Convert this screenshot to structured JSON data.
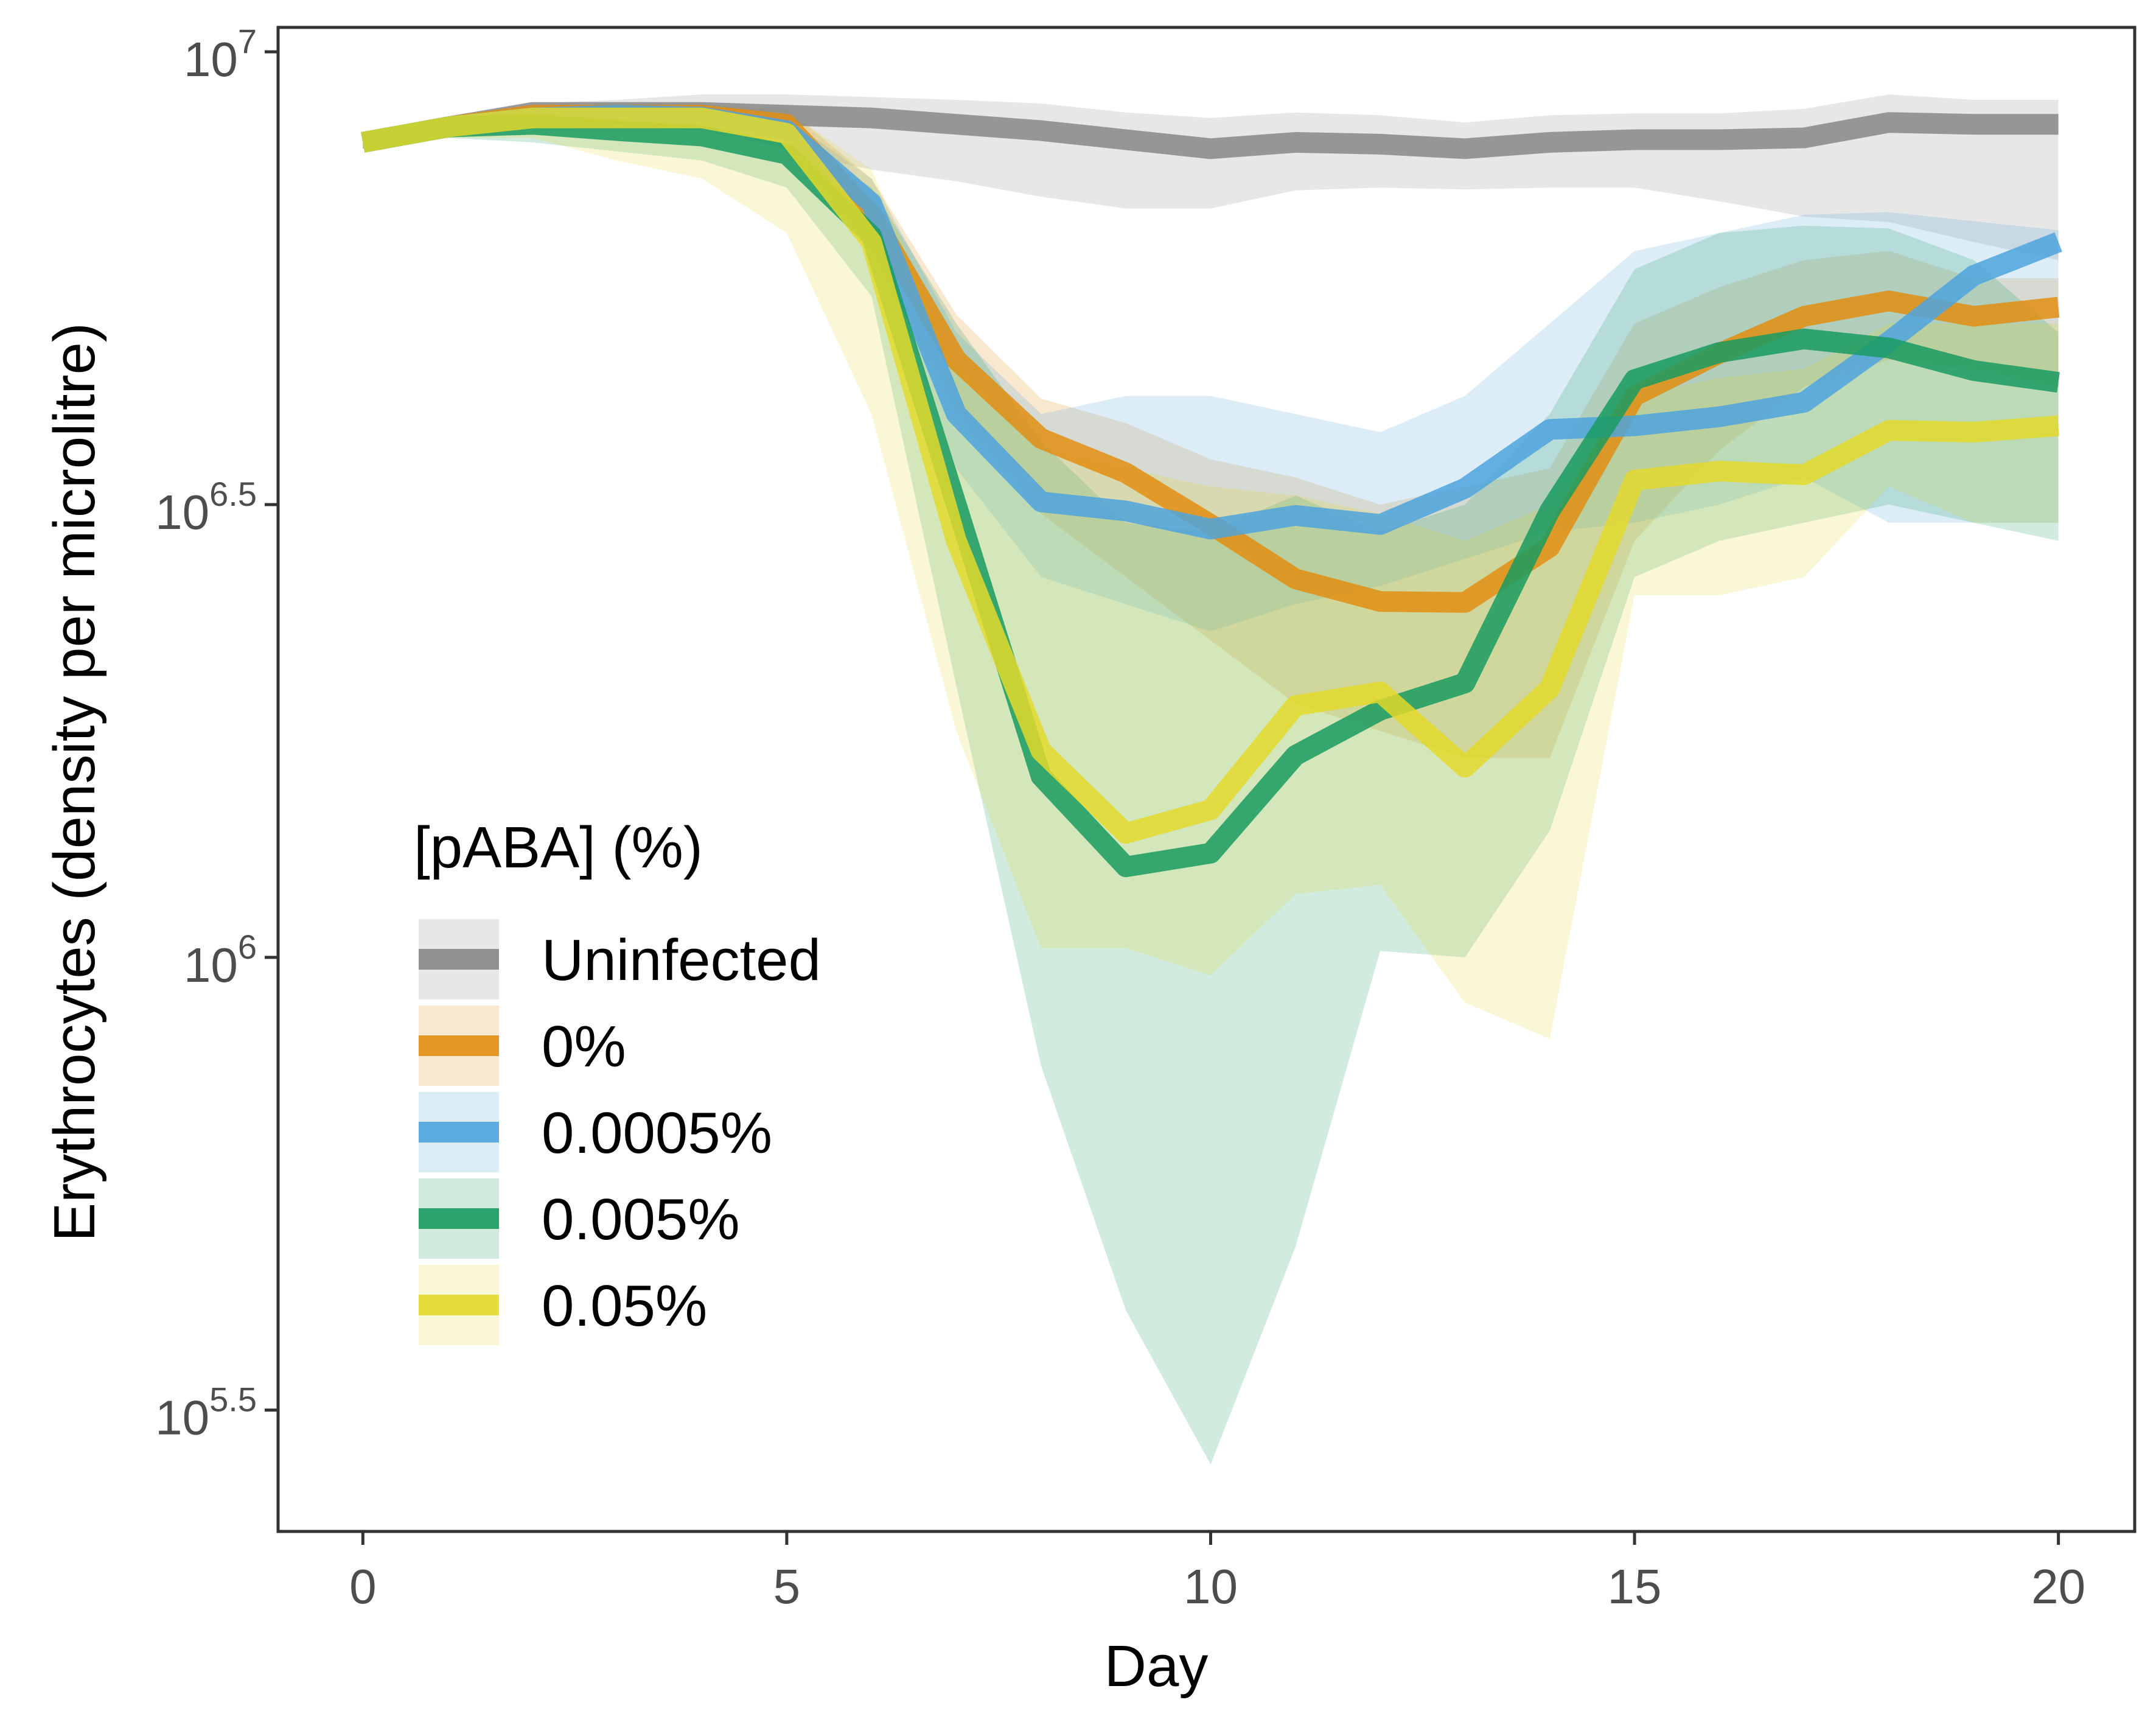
{
  "chart_data": {
    "type": "line",
    "xlabel": "Day",
    "ylabel": "Erythrocytes (density per microlitre)",
    "y_scale": "log10",
    "xlim": [
      -1,
      20.9
    ],
    "ylim_log10": [
      5.366,
      7.027
    ],
    "x_ticks": [
      0,
      5,
      10,
      15,
      20
    ],
    "y_ticks": [
      {
        "value": 5.5,
        "base": "10",
        "exp": "5.5"
      },
      {
        "value": 6.0,
        "base": "10",
        "exp": "6"
      },
      {
        "value": 6.5,
        "base": "10",
        "exp": "6.5"
      },
      {
        "value": 7.0,
        "base": "10",
        "exp": "7"
      }
    ],
    "legend_title": "[pABA] (%)",
    "legend_position": "center-left",
    "grid": false,
    "x": [
      0,
      1,
      2,
      3,
      4,
      5,
      6,
      7,
      8,
      9,
      10,
      11,
      12,
      13,
      14,
      15,
      16,
      17,
      18,
      19,
      20
    ],
    "series": [
      {
        "name": "Uninfected",
        "color": "#878787",
        "band_color": "#d9d9d9",
        "mean": [
          6.9,
          6.917,
          6.933,
          6.933,
          6.933,
          6.93,
          6.927,
          6.92,
          6.913,
          6.903,
          6.893,
          6.9,
          6.898,
          6.893,
          6.9,
          6.903,
          6.903,
          6.905,
          6.922,
          6.92,
          6.92
        ],
        "lower": [
          6.893,
          6.905,
          6.925,
          6.92,
          6.925,
          6.89,
          6.87,
          6.857,
          6.84,
          6.827,
          6.827,
          6.847,
          6.85,
          6.848,
          6.85,
          6.85,
          6.835,
          6.818,
          6.812,
          6.79,
          6.77
        ],
        "upper": [
          6.907,
          6.922,
          6.943,
          6.947,
          6.953,
          6.953,
          6.95,
          6.947,
          6.943,
          6.933,
          6.927,
          6.933,
          6.93,
          6.922,
          6.93,
          6.932,
          6.932,
          6.937,
          6.953,
          6.947,
          6.947
        ]
      },
      {
        "name": "0%",
        "color": "#e28e12",
        "band_color": "#f6ddbd",
        "mean": [
          6.9,
          6.917,
          6.93,
          6.93,
          6.93,
          6.92,
          6.82,
          6.66,
          6.573,
          6.535,
          6.478,
          6.418,
          6.393,
          6.392,
          6.453,
          6.62,
          6.667,
          6.708,
          6.725,
          6.708,
          6.718
        ],
        "lower": [
          6.893,
          6.91,
          6.92,
          6.917,
          6.915,
          6.9,
          6.78,
          6.6,
          6.49,
          6.42,
          6.35,
          6.28,
          6.25,
          6.22,
          6.22,
          6.46,
          6.56,
          6.63,
          6.66,
          6.65,
          6.63
        ],
        "upper": [
          6.907,
          6.925,
          6.937,
          6.94,
          6.94,
          6.937,
          6.86,
          6.71,
          6.617,
          6.59,
          6.55,
          6.53,
          6.5,
          6.52,
          6.54,
          6.7,
          6.74,
          6.77,
          6.78,
          6.75,
          6.75
        ]
      },
      {
        "name": "0.0005%",
        "color": "#4ea3dd",
        "band_color": "#d3e8f6",
        "mean": [
          6.9,
          6.917,
          6.927,
          6.93,
          6.928,
          6.913,
          6.833,
          6.6,
          6.503,
          6.493,
          6.473,
          6.488,
          6.478,
          6.518,
          6.583,
          6.587,
          6.597,
          6.613,
          6.68,
          6.753,
          6.79
        ],
        "lower": [
          6.893,
          6.91,
          6.917,
          6.917,
          6.913,
          6.893,
          6.81,
          6.54,
          6.42,
          6.39,
          6.36,
          6.39,
          6.41,
          6.44,
          6.47,
          6.48,
          6.5,
          6.53,
          6.48,
          6.48,
          6.48
        ],
        "upper": [
          6.907,
          6.922,
          6.937,
          6.943,
          6.94,
          6.927,
          6.86,
          6.69,
          6.6,
          6.62,
          6.62,
          6.6,
          6.58,
          6.62,
          6.7,
          6.78,
          6.8,
          6.82,
          6.823,
          6.813,
          6.803
        ]
      },
      {
        "name": "0.005%",
        "color": "#199b60",
        "band_color": "#cce5d9",
        "mean": [
          6.9,
          6.917,
          6.92,
          6.913,
          6.907,
          6.887,
          6.797,
          6.5,
          6.2,
          6.1,
          6.115,
          6.223,
          6.273,
          6.303,
          6.493,
          6.638,
          6.668,
          6.683,
          6.673,
          6.648,
          6.635
        ],
        "lower": [
          6.893,
          6.905,
          6.9,
          6.89,
          6.88,
          6.85,
          6.73,
          6.3,
          5.88,
          5.61,
          5.44,
          5.68,
          6.007,
          6.0,
          6.14,
          6.42,
          6.46,
          6.48,
          6.5,
          6.48,
          6.46
        ],
        "upper": [
          6.907,
          6.925,
          6.935,
          6.93,
          6.93,
          6.91,
          6.85,
          6.7,
          6.57,
          6.48,
          6.47,
          6.51,
          6.47,
          6.5,
          6.6,
          6.76,
          6.8,
          6.808,
          6.805,
          6.77,
          6.69
        ]
      },
      {
        "name": "0.05%",
        "color": "#e3d92c",
        "band_color": "#fcf6cd",
        "mean": [
          6.9,
          6.917,
          6.927,
          6.927,
          6.927,
          6.91,
          6.79,
          6.46,
          6.228,
          6.137,
          6.163,
          6.278,
          6.293,
          6.21,
          6.297,
          6.527,
          6.537,
          6.533,
          6.582,
          6.58,
          6.587
        ],
        "lower": [
          6.893,
          6.905,
          6.905,
          6.88,
          6.86,
          6.8,
          6.6,
          6.25,
          6.01,
          6.01,
          5.98,
          6.07,
          6.08,
          5.95,
          5.91,
          6.4,
          6.4,
          6.42,
          6.52,
          6.48,
          6.48
        ],
        "upper": [
          6.907,
          6.922,
          6.937,
          6.943,
          6.943,
          6.935,
          6.87,
          6.65,
          6.56,
          6.54,
          6.52,
          6.51,
          6.49,
          6.46,
          6.5,
          6.62,
          6.64,
          6.65,
          6.7,
          6.7,
          6.7
        ]
      }
    ]
  }
}
